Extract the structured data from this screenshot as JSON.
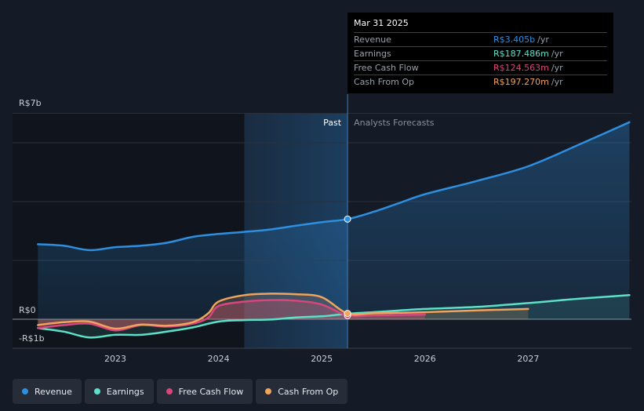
{
  "chart_data": {
    "type": "line",
    "currency": "R$",
    "y_labels": [
      "R$7b",
      "R$0",
      "-R$1b"
    ],
    "ylim": [
      -1,
      7
    ],
    "x_ticks": [
      "2023",
      "2024",
      "2025",
      "2026",
      "2027"
    ],
    "region_labels": {
      "past": "Past",
      "forecast": "Analysts Forecasts"
    },
    "series": [
      {
        "name": "Revenue",
        "color": "#2e8fe0",
        "points": [
          [
            2022.25,
            2.55
          ],
          [
            2022.5,
            2.5
          ],
          [
            2022.75,
            2.35
          ],
          [
            2023.0,
            2.45
          ],
          [
            2023.25,
            2.5
          ],
          [
            2023.5,
            2.6
          ],
          [
            2023.75,
            2.8
          ],
          [
            2024.0,
            2.9
          ],
          [
            2024.25,
            2.97
          ],
          [
            2024.5,
            3.05
          ],
          [
            2024.75,
            3.18
          ],
          [
            2025.0,
            3.3
          ],
          [
            2025.25,
            3.405
          ],
          [
            2025.5,
            3.65
          ],
          [
            2025.75,
            3.95
          ],
          [
            2026.0,
            4.25
          ],
          [
            2026.5,
            4.7
          ],
          [
            2027.0,
            5.2
          ],
          [
            2027.5,
            5.95
          ],
          [
            2027.98,
            6.7
          ]
        ]
      },
      {
        "name": "Earnings",
        "color": "#5de0c8",
        "points": [
          [
            2022.25,
            -0.3
          ],
          [
            2022.5,
            -0.42
          ],
          [
            2022.75,
            -0.62
          ],
          [
            2023.0,
            -0.53
          ],
          [
            2023.25,
            -0.53
          ],
          [
            2023.5,
            -0.42
          ],
          [
            2023.75,
            -0.28
          ],
          [
            2024.0,
            -0.08
          ],
          [
            2024.25,
            -0.03
          ],
          [
            2024.5,
            -0.01
          ],
          [
            2024.75,
            0.06
          ],
          [
            2025.0,
            0.1
          ],
          [
            2025.25,
            0.187
          ],
          [
            2025.5,
            0.24
          ],
          [
            2026.0,
            0.35
          ],
          [
            2026.5,
            0.42
          ],
          [
            2027.0,
            0.55
          ],
          [
            2027.5,
            0.7
          ],
          [
            2027.98,
            0.82
          ]
        ]
      },
      {
        "name": "Free Cash Flow",
        "color": "#d9457d",
        "points": [
          [
            2022.25,
            -0.3
          ],
          [
            2022.5,
            -0.2
          ],
          [
            2022.75,
            -0.15
          ],
          [
            2023.0,
            -0.38
          ],
          [
            2023.25,
            -0.2
          ],
          [
            2023.5,
            -0.25
          ],
          [
            2023.75,
            -0.15
          ],
          [
            2023.9,
            0.05
          ],
          [
            2024.0,
            0.45
          ],
          [
            2024.25,
            0.6
          ],
          [
            2024.5,
            0.65
          ],
          [
            2024.75,
            0.63
          ],
          [
            2025.0,
            0.5
          ],
          [
            2025.25,
            0.125
          ],
          [
            2025.5,
            0.13
          ],
          [
            2026.0,
            0.16
          ]
        ]
      },
      {
        "name": "Cash From Op",
        "color": "#f0a35c",
        "points": [
          [
            2022.25,
            -0.2
          ],
          [
            2022.5,
            -0.1
          ],
          [
            2022.75,
            -0.08
          ],
          [
            2023.0,
            -0.32
          ],
          [
            2023.25,
            -0.18
          ],
          [
            2023.5,
            -0.22
          ],
          [
            2023.75,
            -0.1
          ],
          [
            2023.9,
            0.2
          ],
          [
            2024.0,
            0.6
          ],
          [
            2024.25,
            0.82
          ],
          [
            2024.5,
            0.87
          ],
          [
            2024.75,
            0.85
          ],
          [
            2025.0,
            0.75
          ],
          [
            2025.25,
            0.197
          ],
          [
            2025.5,
            0.2
          ],
          [
            2026.0,
            0.24
          ],
          [
            2026.5,
            0.3
          ],
          [
            2027.0,
            0.35
          ]
        ]
      }
    ]
  },
  "tooltip": {
    "date": "Mar 31 2025",
    "rows": [
      {
        "label": "Revenue",
        "value": "R$3.405b",
        "unit": "/yr",
        "color": "#2e8fe0"
      },
      {
        "label": "Earnings",
        "value": "R$187.486m",
        "unit": "/yr",
        "color": "#5de0c8"
      },
      {
        "label": "Free Cash Flow",
        "value": "R$124.563m",
        "unit": "/yr",
        "color": "#d9457d"
      },
      {
        "label": "Cash From Op",
        "value": "R$197.270m",
        "unit": "/yr",
        "color": "#f0a35c"
      }
    ]
  },
  "legend": [
    {
      "label": "Revenue",
      "color": "#2e8fe0"
    },
    {
      "label": "Earnings",
      "color": "#5de0c8"
    },
    {
      "label": "Free Cash Flow",
      "color": "#d9457d"
    },
    {
      "label": "Cash From Op",
      "color": "#f0a35c"
    }
  ],
  "highlight": {
    "x": 2025.25,
    "past_region_start": 2024.25
  }
}
